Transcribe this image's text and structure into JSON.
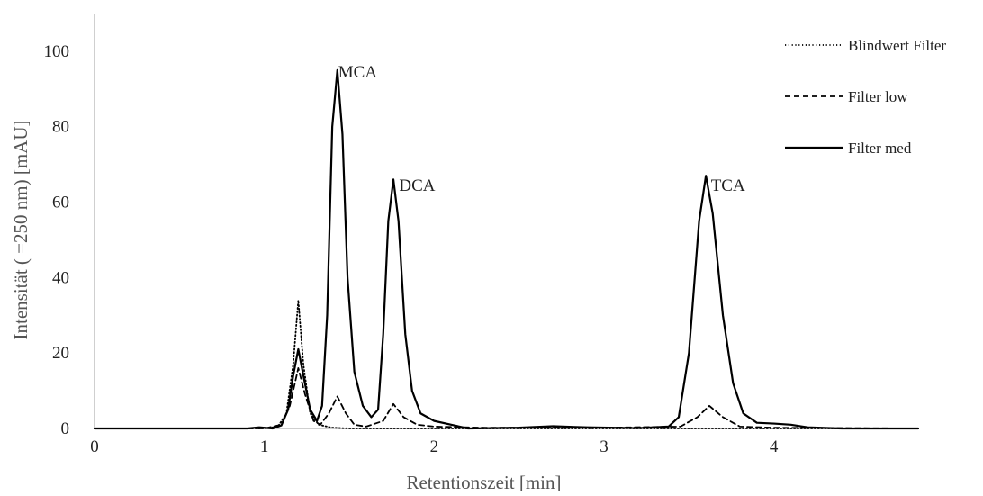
{
  "chart_data": {
    "type": "line",
    "xlabel": "Retentionszeit [min]",
    "ylabel": "Intensität ( =250 nm) [mAU]",
    "xlim": [
      0,
      4.85
    ],
    "ylim": [
      0,
      110
    ],
    "x_ticks": [
      "0",
      "1",
      "2",
      "3",
      "4"
    ],
    "y_ticks": [
      "0",
      "20",
      "40",
      "60",
      "80",
      "100"
    ],
    "x_tick_values": [
      0,
      1,
      2,
      3,
      4
    ],
    "y_tick_values": [
      0,
      20,
      40,
      60,
      80,
      100
    ],
    "grid": false,
    "legend_position": "top-right",
    "annotations": [
      {
        "text": "MCA",
        "x": 1.55,
        "y": 93
      },
      {
        "text": "DCA",
        "x": 1.9,
        "y": 63
      },
      {
        "text": "TCA",
        "x": 3.73,
        "y": 63
      }
    ],
    "series": [
      {
        "name": "Blindwert Filter",
        "style": "dotted",
        "color": "#000000",
        "points": [
          [
            0,
            0
          ],
          [
            0.9,
            0
          ],
          [
            1.0,
            0
          ],
          [
            1.08,
            0.5
          ],
          [
            1.13,
            4
          ],
          [
            1.17,
            17
          ],
          [
            1.2,
            34
          ],
          [
            1.23,
            17
          ],
          [
            1.27,
            4
          ],
          [
            1.32,
            1
          ],
          [
            1.4,
            0.2
          ],
          [
            1.5,
            0
          ],
          [
            2.0,
            0
          ],
          [
            3.0,
            0
          ],
          [
            4.0,
            0
          ],
          [
            4.85,
            0
          ]
        ]
      },
      {
        "name": "Filter low",
        "style": "dashed",
        "color": "#000000",
        "points": [
          [
            0,
            0
          ],
          [
            1.0,
            0
          ],
          [
            1.1,
            1
          ],
          [
            1.15,
            6
          ],
          [
            1.2,
            16
          ],
          [
            1.24,
            9
          ],
          [
            1.29,
            2
          ],
          [
            1.33,
            1
          ],
          [
            1.38,
            4
          ],
          [
            1.43,
            8.5
          ],
          [
            1.48,
            4
          ],
          [
            1.53,
            1
          ],
          [
            1.6,
            0.5
          ],
          [
            1.7,
            2
          ],
          [
            1.76,
            6.5
          ],
          [
            1.82,
            3
          ],
          [
            1.9,
            1
          ],
          [
            2.0,
            0.5
          ],
          [
            2.3,
            0.2
          ],
          [
            3.0,
            0.2
          ],
          [
            3.45,
            0.5
          ],
          [
            3.55,
            3
          ],
          [
            3.62,
            6
          ],
          [
            3.7,
            3
          ],
          [
            3.8,
            0.5
          ],
          [
            4.0,
            0.2
          ],
          [
            4.85,
            0
          ]
        ]
      },
      {
        "name": "Filter med",
        "style": "solid",
        "color": "#000000",
        "points": [
          [
            0,
            0
          ],
          [
            0.9,
            0
          ],
          [
            0.97,
            0.3
          ],
          [
            1.05,
            0
          ],
          [
            1.1,
            0.8
          ],
          [
            1.14,
            5
          ],
          [
            1.17,
            14
          ],
          [
            1.2,
            21
          ],
          [
            1.23,
            14
          ],
          [
            1.27,
            5
          ],
          [
            1.31,
            2
          ],
          [
            1.34,
            6
          ],
          [
            1.37,
            30
          ],
          [
            1.4,
            80
          ],
          [
            1.43,
            95
          ],
          [
            1.46,
            78
          ],
          [
            1.49,
            40
          ],
          [
            1.53,
            15
          ],
          [
            1.58,
            6
          ],
          [
            1.63,
            3
          ],
          [
            1.67,
            5
          ],
          [
            1.7,
            25
          ],
          [
            1.73,
            55
          ],
          [
            1.76,
            66
          ],
          [
            1.79,
            55
          ],
          [
            1.83,
            25
          ],
          [
            1.87,
            10
          ],
          [
            1.92,
            4
          ],
          [
            2.0,
            2
          ],
          [
            2.1,
            1
          ],
          [
            2.2,
            0
          ],
          [
            2.5,
            0.2
          ],
          [
            2.7,
            0.6
          ],
          [
            2.9,
            0.3
          ],
          [
            3.2,
            0.1
          ],
          [
            3.38,
            0.5
          ],
          [
            3.44,
            3
          ],
          [
            3.5,
            20
          ],
          [
            3.56,
            55
          ],
          [
            3.6,
            67
          ],
          [
            3.64,
            57
          ],
          [
            3.7,
            30
          ],
          [
            3.76,
            12
          ],
          [
            3.82,
            4
          ],
          [
            3.9,
            1.5
          ],
          [
            4.0,
            1.3
          ],
          [
            4.1,
            1
          ],
          [
            4.2,
            0.3
          ],
          [
            4.4,
            0
          ],
          [
            4.85,
            0
          ]
        ]
      }
    ]
  }
}
